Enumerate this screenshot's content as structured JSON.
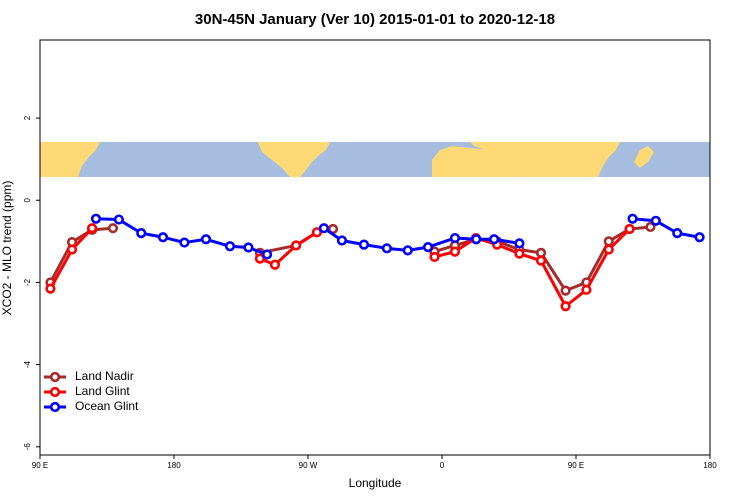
{
  "chart_data": {
    "type": "line",
    "title": "30N-45N January (Ver 10)   2015-01-01 to 2020-12-18",
    "x_label": "Longitude",
    "y_label": "XCO2 - MLO trend (ppm)",
    "xlim": [
      90,
      540
    ],
    "xticks": [
      {
        "value": 90,
        "label": "90 E"
      },
      180,
      {
        "value": 270,
        "label": "90 W"
      },
      {
        "value": 360,
        "label": "0"
      },
      {
        "value": 450,
        "label": "90 E"
      },
      {
        "value": 540,
        "label": "180"
      }
    ],
    "ylim": [
      -6.2,
      3.9
    ],
    "yticks": [
      2,
      0,
      -2,
      -4,
      -6
    ],
    "legend": "bottom-left",
    "series": [
      {
        "name": "Land Nadir",
        "color": "#a52a2a",
        "x": [
          97,
          111.5,
          125,
          139,
          null,
          237.7,
          262,
          276,
          286.8,
          null,
          355,
          368.7,
          382.8,
          397,
          412,
          426.5,
          443,
          457,
          472,
          486,
          500
        ],
        "values": [
          -2.0,
          -1.02,
          -0.72,
          -0.68,
          null,
          -1.28,
          -1.1,
          -0.78,
          -0.7,
          null,
          -1.25,
          -1.1,
          -0.95,
          -1.0,
          -1.2,
          -1.28,
          -2.2,
          -2.0,
          -1.0,
          -0.7,
          -0.65
        ]
      },
      {
        "name": "Land Glint",
        "color": "#ff0000",
        "x": [
          97,
          111.5,
          125,
          null,
          237.7,
          247.8,
          262,
          276,
          null,
          355,
          368.7,
          382.8,
          397,
          412,
          426.5,
          443,
          457,
          472,
          486
        ],
        "values": [
          -2.15,
          -1.2,
          -0.68,
          null,
          -1.42,
          -1.57,
          -1.1,
          -0.78,
          null,
          -1.38,
          -1.25,
          -0.92,
          -1.08,
          -1.3,
          -1.47,
          -2.58,
          -2.18,
          -1.2,
          -0.7
        ]
      },
      {
        "name": "Ocean Glint",
        "color": "#0000ff",
        "x": [
          127.6,
          143,
          158,
          172.6,
          187,
          201.5,
          217.6,
          230,
          242.5,
          null,
          280.7,
          292.8,
          307.6,
          323,
          337,
          350.6,
          368.7,
          383,
          395,
          412,
          null,
          488,
          503.6,
          518,
          533
        ],
        "values": [
          -0.45,
          -0.47,
          -0.8,
          -0.9,
          -1.03,
          -0.95,
          -1.12,
          -1.15,
          -1.32,
          null,
          -0.68,
          -0.98,
          -1.08,
          -1.17,
          -1.22,
          -1.14,
          -0.92,
          -0.95,
          -0.95,
          -1.05,
          null,
          -0.45,
          -0.5,
          -0.8,
          -0.9
        ]
      }
    ]
  }
}
